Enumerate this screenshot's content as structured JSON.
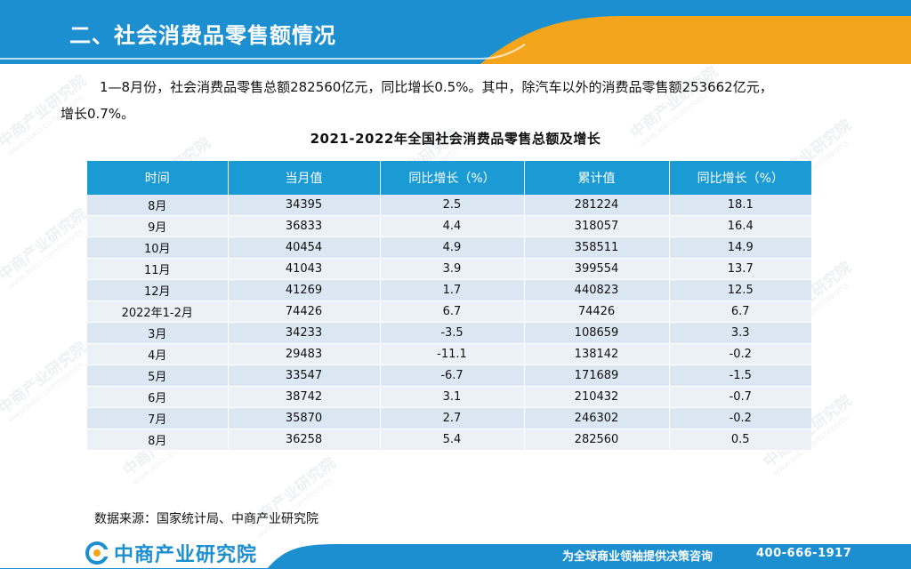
{
  "header": {
    "title": "二、社会消费品零售额情况",
    "colors": {
      "blue": "#1b8fd0",
      "orange": "#f5a51b"
    }
  },
  "intro": {
    "line1": "1—8月份，社会消费品零售总额282560亿元，同比增长0.5%。其中，除汽车以外的消费品零售额253662亿元，",
    "line2": "增长0.7%。"
  },
  "table": {
    "title": "2021-2022年全国社会消费品零售总额及增长",
    "headers": [
      "时间",
      "当月值",
      "同比增长（%）",
      "累计值",
      "同比增长（%）"
    ],
    "rows": [
      [
        "8月",
        "34395",
        "2.5",
        "281224",
        "18.1"
      ],
      [
        "9月",
        "36833",
        "4.4",
        "318057",
        "16.4"
      ],
      [
        "10月",
        "40454",
        "4.9",
        "358511",
        "14.9"
      ],
      [
        "11月",
        "41043",
        "3.9",
        "399554",
        "13.7"
      ],
      [
        "12月",
        "41269",
        "1.7",
        "440823",
        "12.5"
      ],
      [
        "2022年1-2月",
        "74426",
        "6.7",
        "74426",
        "6.7"
      ],
      [
        "3月",
        "34233",
        "-3.5",
        "108659",
        "3.3"
      ],
      [
        "4月",
        "29483",
        "-11.1",
        "138142",
        "-0.2"
      ],
      [
        "5月",
        "33547",
        "-6.7",
        "171689",
        "-1.5"
      ],
      [
        "6月",
        "38742",
        "3.1",
        "210432",
        "-0.7"
      ],
      [
        "7月",
        "35870",
        "2.7",
        "246302",
        "-0.2"
      ],
      [
        "8月",
        "36258",
        "5.4",
        "282560",
        "0.5"
      ]
    ],
    "header_color": "#1b9bd4"
  },
  "source": "数据来源：国家统计局、中商产业研究院",
  "watermark": {
    "name": "中商产业研究院",
    "url": "www.askci.com/reports"
  },
  "footer": {
    "logo_text": "中商产业研究院",
    "slogan": "为全球商业领袖提供决策咨询",
    "phone": "400-666-1917"
  }
}
